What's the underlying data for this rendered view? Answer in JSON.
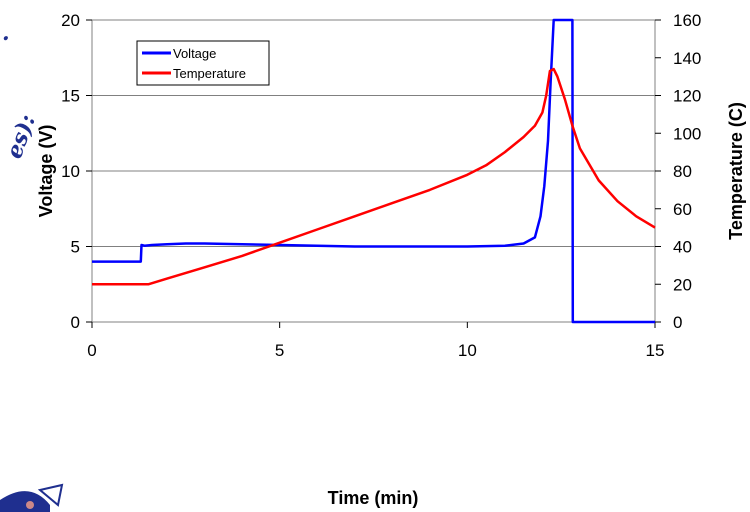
{
  "chart_data": {
    "type": "line",
    "title": "",
    "xlabel": "Time (min)",
    "ylabel": "Voltage (V)",
    "y2label": "Temperature (C)",
    "xlim": [
      0,
      15
    ],
    "ylim": [
      0,
      20
    ],
    "y2lim": [
      0,
      160
    ],
    "xticks": [
      0,
      5,
      10,
      15
    ],
    "yticks": [
      0,
      5,
      10,
      15,
      20
    ],
    "y2ticks": [
      0,
      20,
      40,
      60,
      80,
      100,
      120,
      140,
      160
    ],
    "grid": "horizontal",
    "legend_position": "top-left",
    "series": [
      {
        "name": "Voltage",
        "axis": "left",
        "color": "#0000ff",
        "x": [
          0,
          1.3,
          1.32,
          1.4,
          1.6,
          2.0,
          2.5,
          3.0,
          4.0,
          5.0,
          6.0,
          7.0,
          8.0,
          9.0,
          10.0,
          11.0,
          11.5,
          11.8,
          11.95,
          12.05,
          12.15,
          12.22,
          12.3,
          12.35,
          12.5,
          12.8,
          12.81,
          13.5,
          15.0
        ],
        "y": [
          4.0,
          4.0,
          5.1,
          5.05,
          5.1,
          5.15,
          5.2,
          5.2,
          5.15,
          5.1,
          5.05,
          5.0,
          5.0,
          5.0,
          5.0,
          5.05,
          5.2,
          5.6,
          7.0,
          9.0,
          12.0,
          16.0,
          20.0,
          20.0,
          20.0,
          20.0,
          0.0,
          0.0,
          0.0
        ]
      },
      {
        "name": "Temperature",
        "axis": "right",
        "color": "#ff0000",
        "x": [
          0,
          1.5,
          2.0,
          3.0,
          4.0,
          5.0,
          6.0,
          7.0,
          8.0,
          9.0,
          10.0,
          10.5,
          11.0,
          11.5,
          11.8,
          12.0,
          12.1,
          12.2,
          12.3,
          12.4,
          12.6,
          12.8,
          13.0,
          13.5,
          14.0,
          14.5,
          15.0
        ],
        "y": [
          20,
          20,
          23,
          29,
          35,
          42,
          49,
          56,
          63,
          70,
          78,
          83,
          90,
          98,
          104,
          111,
          120,
          133,
          134,
          130,
          118,
          104,
          92,
          75,
          64,
          56,
          50
        ]
      }
    ]
  },
  "background_text": {
    "fragment_top": ".",
    "fragment_side": "es):"
  }
}
